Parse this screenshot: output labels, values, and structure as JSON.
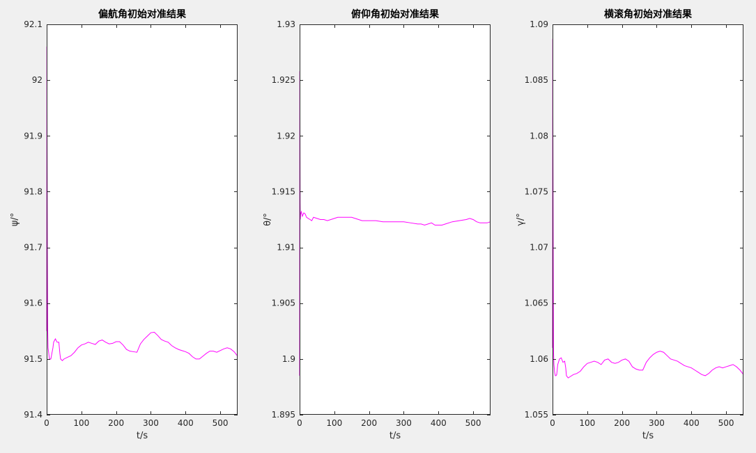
{
  "figure": {
    "background": "#f0f0f0",
    "axes_background": "#ffffff",
    "axis_color": "#262626",
    "line_color": "#ff00ff"
  },
  "chart_data": [
    {
      "type": "line",
      "title": "偏航角初始对准结果",
      "xlabel": "t/s",
      "ylabel": "ψ/°",
      "xlim": [
        0,
        550
      ],
      "ylim": [
        91.4,
        92.1
      ],
      "xticks": [
        0,
        100,
        200,
        300,
        400,
        500
      ],
      "xtick_labels": [
        "0",
        "100",
        "200",
        "300",
        "400",
        "500"
      ],
      "yticks": [
        91.4,
        91.5,
        91.6,
        91.7,
        91.8,
        91.9,
        92,
        92.1
      ],
      "ytick_labels": [
        "91.4",
        "91.5",
        "91.6",
        "91.7",
        "91.8",
        "91.9",
        "92",
        "92.1"
      ],
      "grid": false,
      "series": [
        {
          "color": "#ff00ff",
          "x": [
            0,
            0.5,
            1,
            2,
            3,
            4,
            6,
            8,
            12,
            15,
            18,
            20,
            25,
            30,
            35,
            38,
            40,
            45,
            50,
            60,
            70,
            80,
            90,
            100,
            110,
            120,
            130,
            140,
            150,
            160,
            170,
            180,
            190,
            200,
            210,
            220,
            230,
            240,
            250,
            260,
            270,
            280,
            290,
            300,
            310,
            320,
            330,
            340,
            350,
            360,
            370,
            380,
            390,
            400,
            410,
            420,
            430,
            440,
            450,
            460,
            470,
            480,
            490,
            500,
            510,
            520,
            530,
            540,
            550
          ],
          "y": [
            91.55,
            92.06,
            91.95,
            91.7,
            91.55,
            91.52,
            91.51,
            91.5,
            91.5,
            91.51,
            91.52,
            91.53,
            91.536,
            91.53,
            91.53,
            91.51,
            91.5,
            91.497,
            91.5,
            91.503,
            91.506,
            91.512,
            91.52,
            91.525,
            91.527,
            91.53,
            91.528,
            91.526,
            91.532,
            91.534,
            91.53,
            91.527,
            91.528,
            91.531,
            91.531,
            91.525,
            91.517,
            91.514,
            91.513,
            91.512,
            91.527,
            91.535,
            91.541,
            91.547,
            91.548,
            91.542,
            91.535,
            91.532,
            91.53,
            91.524,
            91.52,
            91.517,
            91.515,
            91.513,
            91.51,
            91.504,
            91.5,
            91.5,
            91.505,
            91.51,
            91.514,
            91.514,
            91.512,
            91.515,
            91.518,
            91.52,
            91.518,
            91.513,
            91.505
          ]
        }
      ]
    },
    {
      "type": "line",
      "title": "俯仰角初始对准结果",
      "xlabel": "t/s",
      "ylabel": "θ/°",
      "xlim": [
        0,
        550
      ],
      "ylim": [
        1.895,
        1.93
      ],
      "xticks": [
        0,
        100,
        200,
        300,
        400,
        500
      ],
      "xtick_labels": [
        "0",
        "100",
        "200",
        "300",
        "400",
        "500"
      ],
      "yticks": [
        1.895,
        1.9,
        1.905,
        1.91,
        1.915,
        1.92,
        1.925,
        1.93
      ],
      "ytick_labels": [
        "1.895",
        "1.9",
        "1.905",
        "1.91",
        "1.915",
        "1.92",
        "1.925",
        "1.93"
      ],
      "grid": false,
      "series": [
        {
          "color": "#ff00ff",
          "x": [
            0,
            0.5,
            1,
            1.5,
            2,
            3,
            5,
            8,
            12,
            16,
            20,
            25,
            30,
            35,
            40,
            50,
            60,
            70,
            80,
            90,
            100,
            110,
            120,
            130,
            140,
            150,
            160,
            170,
            180,
            200,
            220,
            240,
            260,
            280,
            300,
            320,
            340,
            350,
            360,
            370,
            380,
            390,
            400,
            410,
            420,
            440,
            460,
            480,
            490,
            500,
            510,
            520,
            530,
            540,
            550
          ],
          "y": [
            1.8985,
            1.9258,
            1.922,
            1.914,
            1.9125,
            1.913,
            1.9132,
            1.9128,
            1.9131,
            1.913,
            1.9127,
            1.9126,
            1.9125,
            1.9124,
            1.9127,
            1.9126,
            1.9125,
            1.9125,
            1.9124,
            1.9125,
            1.9126,
            1.9127,
            1.9127,
            1.9127,
            1.9127,
            1.9127,
            1.9126,
            1.9125,
            1.9124,
            1.9124,
            1.9124,
            1.9123,
            1.9123,
            1.9123,
            1.9123,
            1.9122,
            1.9121,
            1.9121,
            1.912,
            1.9121,
            1.9122,
            1.912,
            1.912,
            1.912,
            1.9121,
            1.9123,
            1.9124,
            1.9125,
            1.9126,
            1.9125,
            1.9123,
            1.9122,
            1.9122,
            1.9122,
            1.9123
          ]
        }
      ]
    },
    {
      "type": "line",
      "title": "横滚角初始对准结果",
      "xlabel": "t/s",
      "ylabel": "γ/°",
      "xlim": [
        0,
        550
      ],
      "ylim": [
        1.055,
        1.09
      ],
      "xticks": [
        0,
        100,
        200,
        300,
        400,
        500
      ],
      "xtick_labels": [
        "0",
        "100",
        "200",
        "300",
        "400",
        "500"
      ],
      "yticks": [
        1.055,
        1.06,
        1.065,
        1.07,
        1.075,
        1.08,
        1.085,
        1.09
      ],
      "ytick_labels": [
        "1.055",
        "1.06",
        "1.065",
        "1.07",
        "1.075",
        "1.08",
        "1.085",
        "1.09"
      ],
      "grid": false,
      "series": [
        {
          "color": "#ff00ff",
          "x": [
            0,
            0.5,
            1,
            2,
            3,
            4,
            6,
            8,
            10,
            12,
            15,
            18,
            20,
            25,
            30,
            35,
            38,
            40,
            45,
            50,
            60,
            70,
            80,
            90,
            100,
            110,
            120,
            130,
            140,
            150,
            160,
            170,
            180,
            190,
            200,
            210,
            220,
            230,
            240,
            250,
            260,
            270,
            280,
            290,
            300,
            310,
            320,
            330,
            340,
            350,
            360,
            370,
            380,
            390,
            400,
            410,
            420,
            430,
            440,
            450,
            460,
            470,
            480,
            490,
            500,
            510,
            520,
            530,
            540,
            550
          ],
          "y": [
            1.061,
            1.0887,
            1.082,
            1.07,
            1.0605,
            1.0595,
            1.0588,
            1.0585,
            1.0585,
            1.0586,
            1.0595,
            1.0598,
            1.06,
            1.0601,
            1.0597,
            1.0598,
            1.0592,
            1.0585,
            1.0583,
            1.0584,
            1.0586,
            1.0587,
            1.0589,
            1.0593,
            1.0596,
            1.0597,
            1.0598,
            1.0597,
            1.0595,
            1.0599,
            1.06,
            1.0597,
            1.0596,
            1.0597,
            1.0599,
            1.06,
            1.0598,
            1.0593,
            1.0591,
            1.059,
            1.059,
            1.0597,
            1.0601,
            1.0604,
            1.0606,
            1.0607,
            1.0606,
            1.0603,
            1.06,
            1.0599,
            1.0598,
            1.0596,
            1.0594,
            1.0593,
            1.0592,
            1.059,
            1.0588,
            1.0586,
            1.0585,
            1.0587,
            1.059,
            1.0592,
            1.0593,
            1.0592,
            1.0593,
            1.0594,
            1.0595,
            1.0593,
            1.059,
            1.0586
          ]
        }
      ]
    }
  ]
}
